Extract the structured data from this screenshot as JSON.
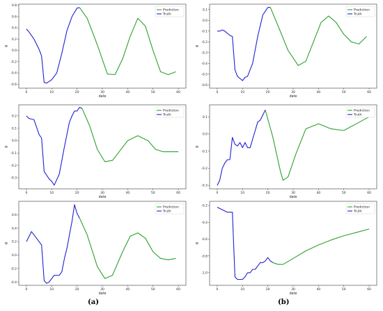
{
  "figure_labels": {
    "left": "(a)",
    "right": "(b)"
  },
  "colors": {
    "prediction": "#2ca02c",
    "truth": "#1f1fd6"
  },
  "chart_data": [
    {
      "type": "line",
      "xlabel": "date",
      "ylabel": "g",
      "xlim": [
        -3,
        63
      ],
      "ylim": [
        -0.67,
        0.82
      ],
      "xticks": [
        0,
        10,
        20,
        30,
        40,
        50,
        60
      ],
      "yticks": [
        -0.6,
        -0.4,
        -0.2,
        0.0,
        0.2,
        0.4,
        0.6,
        0.8
      ],
      "ytick_labels": [
        "-0.6",
        "-0.4",
        "-0.2",
        "0.0",
        "0.2",
        "0.4",
        "0.6",
        "0.8"
      ],
      "legend": [
        "Prediction",
        "Truth"
      ],
      "legend_position": "top-right",
      "series": [
        {
          "name": "Prediction",
          "x": [
            21,
            24,
            28,
            32,
            35,
            38,
            41,
            44,
            47,
            50,
            53,
            56,
            59
          ],
          "y": [
            0.76,
            0.57,
            0.1,
            -0.42,
            -0.43,
            -0.15,
            0.25,
            0.57,
            0.43,
            0.0,
            -0.38,
            -0.43,
            -0.38
          ]
        },
        {
          "name": "Truth",
          "x": [
            0,
            1,
            3,
            5,
            6,
            7,
            8,
            10,
            12,
            14,
            16,
            18,
            20,
            21
          ],
          "y": [
            0.38,
            0.33,
            0.2,
            0.02,
            -0.1,
            -0.57,
            -0.58,
            -0.52,
            -0.4,
            -0.05,
            0.35,
            0.6,
            0.75,
            0.76
          ]
        }
      ]
    },
    {
      "type": "line",
      "xlabel": "date",
      "ylabel": "g",
      "xlim": [
        -3,
        63
      ],
      "ylim": [
        -0.63,
        0.15
      ],
      "xticks": [
        0,
        10,
        20,
        30,
        40,
        50,
        60
      ],
      "yticks": [
        -0.6,
        -0.5,
        -0.4,
        -0.3,
        -0.2,
        -0.1,
        0.0,
        0.1
      ],
      "ytick_labels": [
        "-0.6",
        "-0.5",
        "-0.4",
        "-0.3",
        "-0.2",
        "-0.1",
        "0.0",
        "0.1"
      ],
      "legend": [
        "Prediction",
        "Truth"
      ],
      "legend_position": "top-right",
      "series": [
        {
          "name": "Prediction",
          "x": [
            21,
            24,
            28,
            32,
            35,
            38,
            41,
            44,
            47,
            50,
            53,
            56,
            59
          ],
          "y": [
            0.12,
            -0.05,
            -0.28,
            -0.42,
            -0.38,
            -0.2,
            -0.02,
            0.04,
            -0.02,
            -0.13,
            -0.2,
            -0.22,
            -0.15
          ]
        },
        {
          "name": "Truth",
          "x": [
            0,
            1,
            2,
            3,
            5,
            6,
            7,
            8,
            9,
            10,
            11,
            12,
            14,
            16,
            18,
            20,
            21
          ],
          "y": [
            -0.1,
            -0.1,
            -0.09,
            -0.1,
            -0.14,
            -0.15,
            -0.46,
            -0.52,
            -0.54,
            -0.56,
            -0.53,
            -0.52,
            -0.4,
            -0.15,
            0.05,
            0.12,
            0.12
          ]
        }
      ]
    },
    {
      "type": "line",
      "xlabel": "date",
      "ylabel": "g",
      "xlim": [
        -3,
        63
      ],
      "ylim": [
        -0.39,
        0.29
      ],
      "xticks": [
        0,
        10,
        20,
        30,
        40,
        50,
        60
      ],
      "yticks": [
        -0.3,
        -0.2,
        -0.1,
        0.0,
        0.1,
        0.2
      ],
      "ytick_labels": [
        "-0.3",
        "-0.2",
        "-0.1",
        "0.0",
        "0.1",
        "0.2"
      ],
      "legend": [
        "Prediction",
        "Truth"
      ],
      "legend_position": "top-right",
      "series": [
        {
          "name": "Prediction",
          "x": [
            22,
            25,
            28,
            31,
            34,
            37,
            40,
            44,
            48,
            51,
            54,
            57,
            60
          ],
          "y": [
            0.26,
            0.12,
            -0.07,
            -0.17,
            -0.16,
            -0.08,
            0.0,
            0.04,
            0.0,
            -0.07,
            -0.09,
            -0.09,
            -0.09
          ]
        },
        {
          "name": "Truth",
          "x": [
            0,
            1,
            3,
            5,
            6,
            7,
            8,
            9,
            10,
            11,
            13,
            15,
            16,
            17,
            18,
            19,
            20,
            21,
            22
          ],
          "y": [
            0.2,
            0.18,
            0.17,
            0.05,
            0.02,
            -0.25,
            -0.28,
            -0.31,
            -0.33,
            -0.36,
            -0.27,
            -0.05,
            0.05,
            0.15,
            0.2,
            0.24,
            0.24,
            0.27,
            0.26
          ]
        }
      ]
    },
    {
      "type": "line",
      "xlabel": "date",
      "ylabel": "g",
      "xlim": [
        -3,
        63
      ],
      "ylim": [
        -0.32,
        0.17
      ],
      "xticks": [
        0,
        10,
        20,
        30,
        40,
        50,
        60
      ],
      "yticks": [
        -0.3,
        -0.2,
        -0.1,
        0.0,
        0.1
      ],
      "ytick_labels": [
        "-0.3",
        "-0.2",
        "-0.1",
        "0.0",
        "0.1"
      ],
      "legend": [
        "Prediction",
        "Truth"
      ],
      "legend_position": "top-right",
      "series": [
        {
          "name": "Prediction",
          "x": [
            19,
            22,
            25,
            26,
            28,
            31,
            35,
            40,
            45,
            50,
            55,
            60
          ],
          "y": [
            0.14,
            -0.02,
            -0.22,
            -0.27,
            -0.25,
            -0.12,
            0.03,
            0.06,
            0.03,
            0.02,
            0.06,
            0.1
          ]
        },
        {
          "name": "Truth",
          "x": [
            0,
            1,
            2,
            3,
            4,
            5,
            6,
            7,
            8,
            9,
            10,
            11,
            12,
            13,
            14,
            15,
            16,
            17,
            18,
            19
          ],
          "y": [
            -0.3,
            -0.27,
            -0.2,
            -0.17,
            -0.15,
            -0.15,
            -0.02,
            -0.06,
            -0.07,
            -0.05,
            -0.08,
            -0.05,
            -0.08,
            -0.08,
            -0.03,
            0.02,
            0.07,
            0.08,
            0.11,
            0.14
          ]
        }
      ]
    },
    {
      "type": "line",
      "xlabel": "date",
      "ylabel": "g",
      "xlim": [
        -3,
        63
      ],
      "ylim": [
        -0.45,
        0.8
      ],
      "xticks": [
        0,
        10,
        20,
        30,
        40,
        50,
        60
      ],
      "yticks": [
        -0.4,
        -0.2,
        0.0,
        0.2,
        0.4,
        0.6
      ],
      "ytick_labels": [
        "-0.4",
        "-0.2",
        "0.0",
        "0.2",
        "0.4",
        "0.6"
      ],
      "legend": [
        "Prediction",
        "Truth"
      ],
      "legend_position": "top-right",
      "series": [
        {
          "name": "Prediction",
          "x": [
            21,
            24,
            28,
            31,
            34,
            38,
            41,
            44,
            47,
            50,
            53,
            56,
            59
          ],
          "y": [
            0.55,
            0.3,
            -0.17,
            -0.35,
            -0.3,
            0.05,
            0.28,
            0.33,
            0.25,
            0.05,
            -0.05,
            -0.07,
            -0.05
          ]
        },
        {
          "name": "Truth",
          "x": [
            0,
            2,
            4,
            6,
            7,
            8,
            9,
            11,
            13,
            14,
            15,
            16,
            17,
            18,
            19,
            20,
            21
          ],
          "y": [
            0.2,
            0.35,
            0.25,
            0.15,
            -0.38,
            -0.42,
            -0.4,
            -0.3,
            -0.3,
            -0.25,
            -0.05,
            0.1,
            0.3,
            0.5,
            0.75,
            0.62,
            0.55
          ]
        }
      ]
    },
    {
      "type": "line",
      "xlabel": "date",
      "ylabel": "g",
      "xlim": [
        -3,
        63
      ],
      "ylim": [
        -1.15,
        -0.15
      ],
      "xticks": [
        0,
        10,
        20,
        30,
        40,
        50,
        60
      ],
      "yticks": [
        -1.0,
        -0.8,
        -0.6,
        -0.4,
        -0.2
      ],
      "ytick_labels": [
        "-1.0",
        "-0.8",
        "-0.6",
        "-0.4",
        "-0.2"
      ],
      "legend": [
        "Prediction",
        "Truth"
      ],
      "legend_position": "top-right",
      "series": [
        {
          "name": "Prediction",
          "x": [
            22,
            24,
            26,
            30,
            35,
            40,
            45,
            50,
            55,
            60
          ],
          "y": [
            -0.88,
            -0.9,
            -0.9,
            -0.83,
            -0.74,
            -0.67,
            -0.61,
            -0.56,
            -0.52,
            -0.48
          ]
        },
        {
          "name": "Truth",
          "x": [
            0,
            2,
            4,
            5,
            6,
            7,
            8,
            9,
            10,
            11,
            12,
            13,
            14,
            15,
            16,
            17,
            18,
            19,
            20,
            21,
            22
          ],
          "y": [
            -0.22,
            -0.25,
            -0.28,
            -0.28,
            -0.28,
            -1.05,
            -1.08,
            -1.08,
            -1.08,
            -1.05,
            -1.0,
            -1.0,
            -0.96,
            -0.96,
            -0.92,
            -0.88,
            -0.88,
            -0.86,
            -0.82,
            -0.86,
            -0.88
          ]
        }
      ]
    }
  ]
}
